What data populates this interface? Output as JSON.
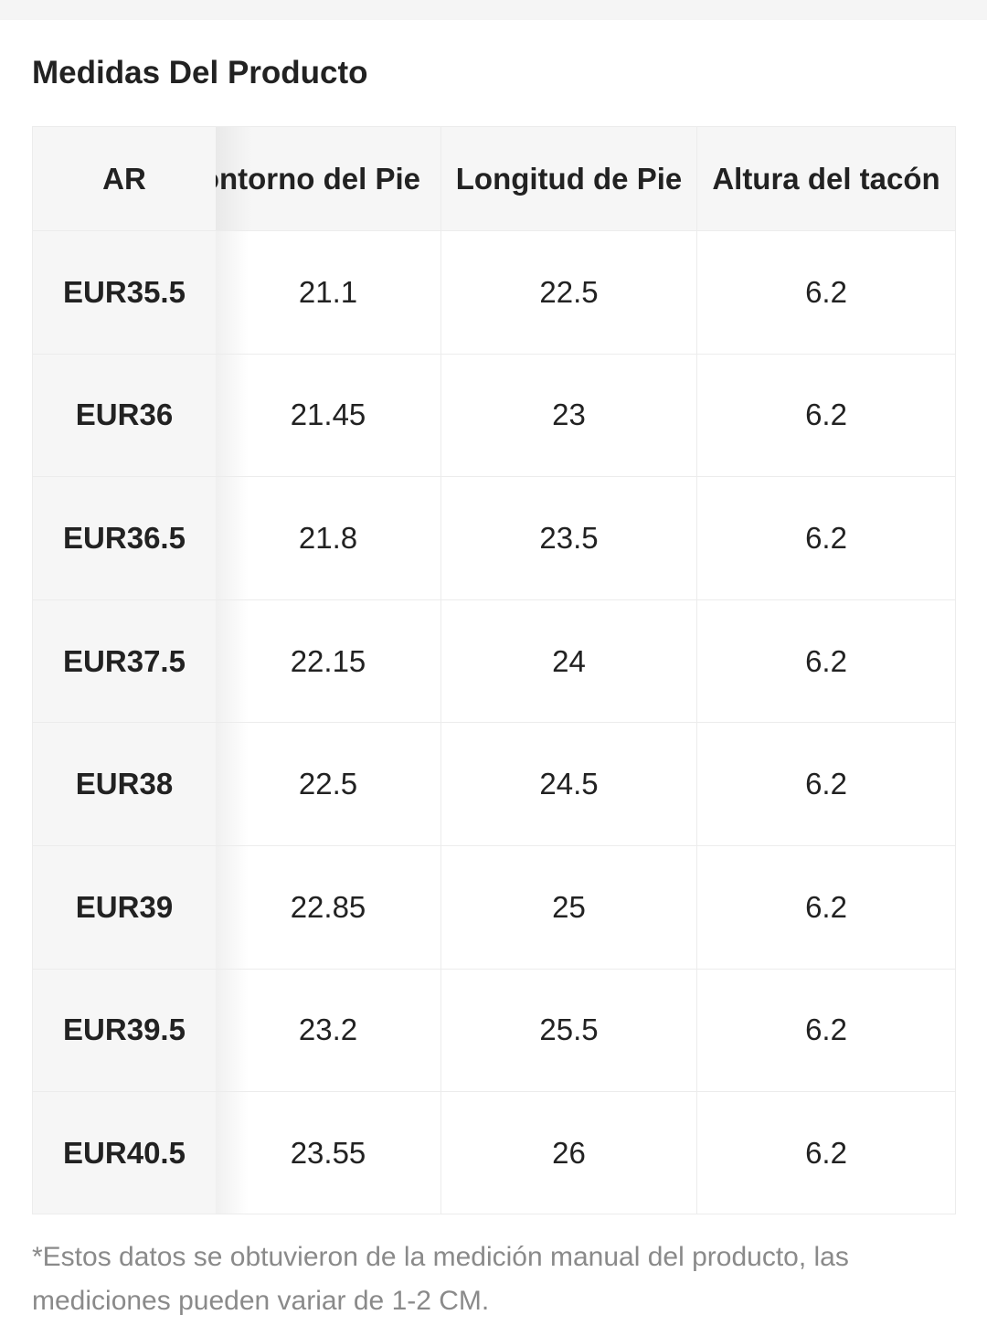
{
  "title": "Medidas Del Producto",
  "table": {
    "headers": [
      "AR",
      "ontorno del Pie",
      "Longitud de Pie",
      "Altura del tacón"
    ],
    "rows": [
      [
        "EUR35.5",
        "21.1",
        "22.5",
        "6.2"
      ],
      [
        "EUR36",
        "21.45",
        "23",
        "6.2"
      ],
      [
        "EUR36.5",
        "21.8",
        "23.5",
        "6.2"
      ],
      [
        "EUR37.5",
        "22.15",
        "24",
        "6.2"
      ],
      [
        "EUR38",
        "22.5",
        "24.5",
        "6.2"
      ],
      [
        "EUR39",
        "22.85",
        "25",
        "6.2"
      ],
      [
        "EUR39.5",
        "23.2",
        "25.5",
        "6.2"
      ],
      [
        "EUR40.5",
        "23.55",
        "26",
        "6.2"
      ]
    ]
  },
  "footnote": "*Estos datos se obtuvieron de la medición manual del producto, las mediciones pueden variar de 1-2 CM.",
  "colors": {
    "text": "#222222",
    "header_bg": "#f6f6f6",
    "border": "#ececec",
    "footnote": "#8a8a8a"
  }
}
